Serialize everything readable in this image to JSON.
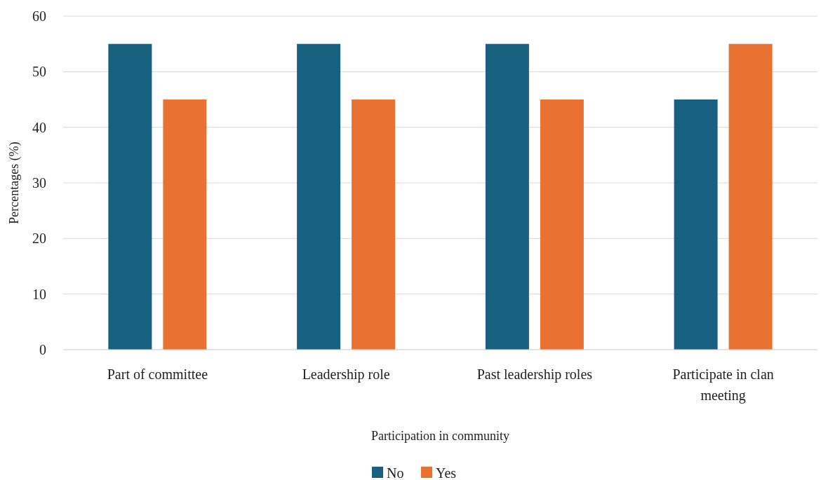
{
  "chart_data": {
    "type": "bar",
    "categories": [
      "Part of committee",
      "Leadership role",
      "Past leadership roles",
      "Participate in clan meeting"
    ],
    "series": [
      {
        "name": "No",
        "color": "#17607f",
        "values": [
          55,
          55,
          55,
          45
        ]
      },
      {
        "name": "Yes",
        "color": "#e97132",
        "values": [
          45,
          45,
          45,
          55
        ]
      }
    ],
    "xlabel": "Participation in community",
    "ylabel": "Percentages (%)",
    "ylim": [
      0,
      60
    ],
    "yticks": [
      0,
      10,
      20,
      30,
      40,
      50,
      60
    ],
    "grid": "y",
    "legend": "bottom"
  }
}
